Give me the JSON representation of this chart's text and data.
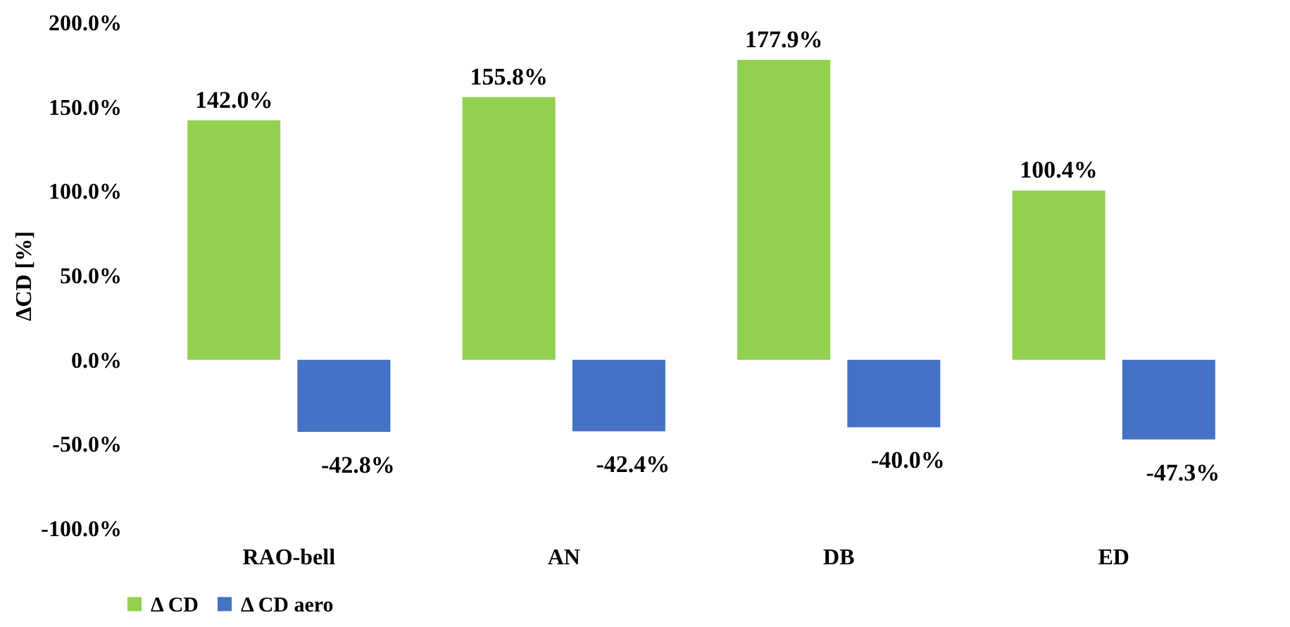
{
  "chart_data": {
    "type": "bar",
    "ylabel": "ΔCD [%]",
    "categories": [
      "RAO-bell",
      "AN",
      "DB",
      "ED"
    ],
    "series": [
      {
        "name": "Δ CD",
        "color": "#92d050",
        "values": [
          142.0,
          155.8,
          177.9,
          100.4
        ],
        "value_labels": [
          "142.0%",
          "155.8%",
          "177.9%",
          "100.4%"
        ]
      },
      {
        "name": "Δ CD aero",
        "color": "#4472c4",
        "values": [
          -42.8,
          -42.4,
          -40.0,
          -47.3
        ],
        "value_labels": [
          "-42.8%",
          "-42.4%",
          "-40.0%",
          "-47.3%"
        ]
      }
    ],
    "ylim": [
      -100,
      200
    ],
    "yticks": [
      {
        "value": -100,
        "label": "-100.0%"
      },
      {
        "value": -50,
        "label": "-50.0%"
      },
      {
        "value": 0,
        "label": "0.0%"
      },
      {
        "value": 50,
        "label": "50.0%"
      },
      {
        "value": 100,
        "label": "100.0%"
      },
      {
        "value": 150,
        "label": "150.0%"
      },
      {
        "value": 200,
        "label": "200.0%"
      }
    ],
    "grid": false,
    "legend": "bottom"
  }
}
